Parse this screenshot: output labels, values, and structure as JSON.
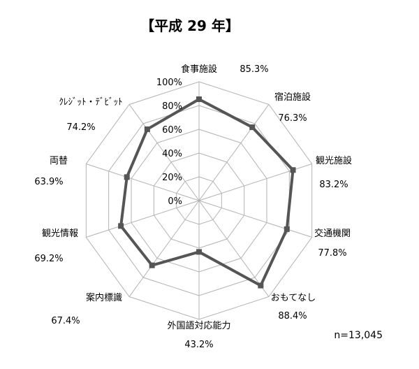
{
  "chart_data": {
    "type": "radar",
    "title": "【平成 29 年】",
    "categories": [
      "食事施設",
      "宿泊施設",
      "観光施設",
      "交通機関",
      "おもてなし",
      "外国語対応能力",
      "案内標識",
      "観光情報",
      "両替",
      "ｸﾚｼﾞｯﾄ・ﾃﾞﾋﾞｯﾄ"
    ],
    "value_labels": [
      "85.3%",
      "76.3%",
      "83.2%",
      "77.8%",
      "88.4%",
      "43.2%",
      "67.4%",
      "69.2%",
      "63.9%",
      "74.2%"
    ],
    "series": [
      {
        "values": [
          85.3,
          76.3,
          83.2,
          77.8,
          88.4,
          43.2,
          67.4,
          69.2,
          63.9,
          74.2
        ]
      }
    ],
    "ticks": [
      "0%",
      "20%",
      "40%",
      "60%",
      "80%",
      "100%"
    ],
    "range": [
      0,
      100
    ],
    "grid": true,
    "line_color": "#555555",
    "grid_color": "#b3b3b3",
    "note": "n=13,045"
  }
}
